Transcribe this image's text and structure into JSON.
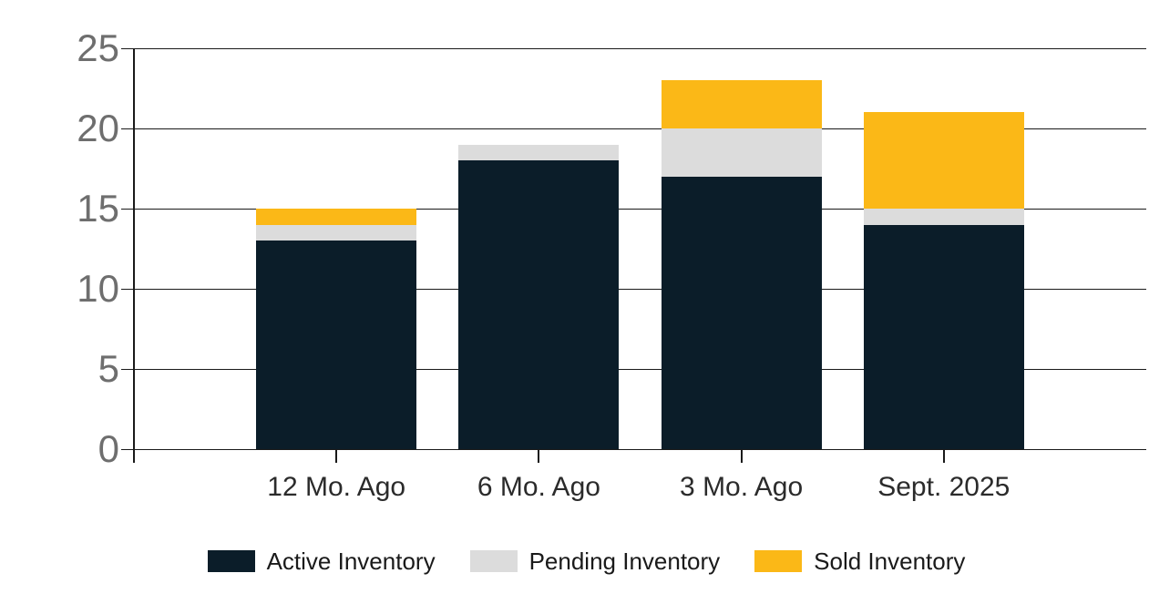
{
  "chart_data": {
    "type": "bar",
    "stacked": true,
    "categories": [
      "12 Mo. Ago",
      "6 Mo. Ago",
      "3 Mo. Ago",
      "Sept. 2025"
    ],
    "series": [
      {
        "name": "Active Inventory",
        "color": "#0b1d29",
        "values": [
          13,
          18,
          17,
          14
        ]
      },
      {
        "name": "Pending Inventory",
        "color": "#dcdcdc",
        "values": [
          1,
          1,
          3,
          1
        ]
      },
      {
        "name": "Sold Inventory",
        "color": "#fbb817",
        "values": [
          1,
          0,
          3,
          6
        ]
      }
    ],
    "stack_totals": [
      15,
      19,
      23,
      21
    ],
    "y_axis": {
      "min": 0,
      "max": 25,
      "tick_step": 5,
      "tick_labels": [
        "0",
        "5",
        "10",
        "15",
        "20",
        "25"
      ],
      "tick_label_color": "#6e6e6e"
    },
    "grid": "horizontal",
    "gridline_color": "#1a1a1a",
    "axis_line_color": "#1a1a1a",
    "x_label_color": "#2b2b2b",
    "legend_position": "bottom",
    "legend_text_color": "#1a1a1a",
    "background_color": "#ffffff"
  }
}
